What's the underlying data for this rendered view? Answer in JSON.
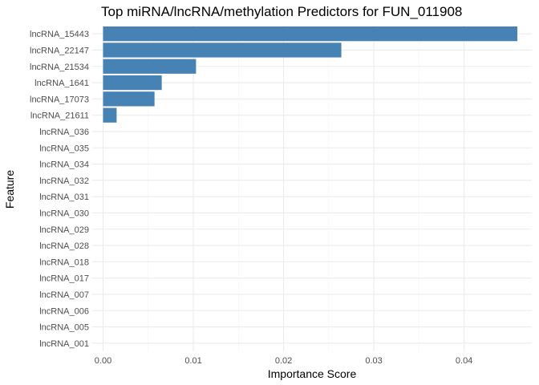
{
  "chart_data": {
    "type": "bar",
    "orientation": "horizontal",
    "title": "Top miRNA/lncRNA/methylation Predictors for FUN_011908",
    "xlabel": "Importance Score",
    "ylabel": "Feature",
    "xlim": [
      -0.0012,
      0.0475
    ],
    "x_ticks": [
      0.0,
      0.01,
      0.02,
      0.03,
      0.04
    ],
    "x_tick_labels": [
      "0.00",
      "0.01",
      "0.02",
      "0.03",
      "0.04"
    ],
    "bar_color": "#4682b4",
    "grid": true,
    "legend": "none",
    "categories": [
      "lncRNA_15443",
      "lncRNA_22147",
      "lncRNA_21534",
      "lncRNA_1641",
      "lncRNA_17073",
      "lncRNA_21611",
      "lncRNA_036",
      "lncRNA_035",
      "lncRNA_034",
      "lncRNA_032",
      "lncRNA_031",
      "lncRNA_030",
      "lncRNA_029",
      "lncRNA_028",
      "lncRNA_018",
      "lncRNA_017",
      "lncRNA_007",
      "lncRNA_006",
      "lncRNA_005",
      "lncRNA_001"
    ],
    "values": [
      0.0459,
      0.0264,
      0.0103,
      0.0065,
      0.0057,
      0.0015,
      0,
      0,
      0,
      0,
      0,
      0,
      0,
      0,
      0,
      0,
      0,
      0,
      0,
      0
    ]
  }
}
